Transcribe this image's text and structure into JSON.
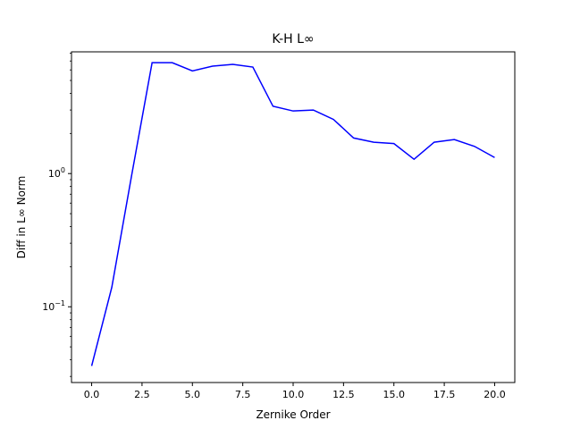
{
  "chart_data": {
    "type": "line",
    "title": "K-H L∞",
    "xlabel": "Zernike Order",
    "ylabel": "Diff in L∞ Norm",
    "yscale": "log",
    "xlim": [
      -1.0,
      21.0
    ],
    "ylim": [
      0.027,
      8.2
    ],
    "x_ticks": [
      0.0,
      2.5,
      5.0,
      7.5,
      10.0,
      12.5,
      15.0,
      17.5,
      20.0
    ],
    "x_tick_labels": [
      "0.0",
      "2.5",
      "5.0",
      "7.5",
      "10.0",
      "12.5",
      "15.0",
      "17.5",
      "20.0"
    ],
    "y_ticks": [
      0.1,
      1.0
    ],
    "y_tick_label_parts": [
      {
        "base": "10",
        "exp": "−1"
      },
      {
        "base": "10",
        "exp": "0"
      }
    ],
    "grid": false,
    "series": [
      {
        "color": "#0000ff",
        "x": [
          0,
          1,
          2,
          3,
          4,
          5,
          6,
          7,
          8,
          9,
          10,
          11,
          12,
          13,
          14,
          15,
          16,
          17,
          18,
          19,
          20
        ],
        "values": [
          0.036,
          0.14,
          1.0,
          6.8,
          6.8,
          5.9,
          6.4,
          6.6,
          6.3,
          3.2,
          2.95,
          3.0,
          2.55,
          1.85,
          1.72,
          1.68,
          1.28,
          1.72,
          1.8,
          1.6,
          1.32
        ]
      }
    ]
  }
}
